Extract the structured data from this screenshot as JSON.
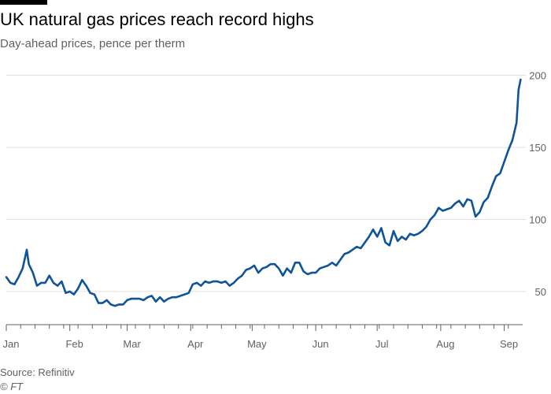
{
  "header": {
    "title": "UK natural gas prices reach record highs",
    "subtitle": "Day-ahead prices, pence per therm"
  },
  "footer": {
    "source": "Source: Refinitiv",
    "credit": "© FT"
  },
  "colors": {
    "line": "#0f5499",
    "grid": "#e6e0db",
    "axis": "#66605c",
    "text": "#66605c"
  },
  "chart_data": {
    "type": "line",
    "title": "UK natural gas prices reach record highs",
    "subtitle": "Day-ahead prices, pence per therm",
    "xlabel": "",
    "ylabel": "pence per therm",
    "ylim": [
      27,
      203
    ],
    "xlim": [
      0,
      252
    ],
    "yticks": [
      50,
      100,
      150,
      200
    ],
    "x_tick_labels": [
      {
        "day": 0,
        "label": "Jan"
      },
      {
        "day": 31,
        "label": "Feb"
      },
      {
        "day": 59,
        "label": "Mar"
      },
      {
        "day": 90,
        "label": "Apr"
      },
      {
        "day": 120,
        "label": "May"
      },
      {
        "day": 151,
        "label": "Jun"
      },
      {
        "day": 181,
        "label": "Jul"
      },
      {
        "day": 212,
        "label": "Aug"
      },
      {
        "day": 243,
        "label": "Sep"
      }
    ],
    "grid": true,
    "legend": "none",
    "series": [
      {
        "name": "Day-ahead price",
        "x": [
          0,
          2,
          4,
          6,
          8,
          10,
          11,
          13,
          15,
          17,
          19,
          21,
          23,
          25,
          27,
          29,
          31,
          33,
          35,
          37,
          39,
          41,
          43,
          45,
          47,
          49,
          51,
          53,
          55,
          57,
          59,
          61,
          63,
          65,
          67,
          69,
          71,
          73,
          75,
          77,
          79,
          81,
          83,
          85,
          87,
          89,
          91,
          93,
          95,
          97,
          99,
          101,
          103,
          105,
          107,
          109,
          111,
          113,
          115,
          117,
          119,
          121,
          123,
          125,
          127,
          129,
          131,
          133,
          135,
          137,
          139,
          141,
          143,
          145,
          147,
          149,
          151,
          153,
          155,
          157,
          159,
          161,
          163,
          165,
          167,
          169,
          171,
          173,
          175,
          177,
          179,
          181,
          183,
          185,
          187,
          189,
          191,
          193,
          195,
          197,
          199,
          201,
          203,
          205,
          207,
          209,
          211,
          213,
          215,
          217,
          219,
          221,
          223,
          225,
          227,
          229,
          231,
          233,
          235,
          237,
          239,
          241,
          243,
          245,
          247,
          249,
          250,
          251
        ],
        "values": [
          60,
          56,
          55,
          60,
          66,
          79,
          69,
          63,
          54,
          56,
          56,
          61,
          56,
          54,
          57,
          49,
          50,
          48,
          52,
          58,
          54,
          49,
          48,
          42,
          42,
          44,
          41,
          40,
          41,
          41,
          44,
          45,
          45,
          45,
          44,
          46,
          47,
          43,
          46,
          43,
          45,
          46,
          46,
          47,
          48,
          49,
          55,
          56,
          54,
          57,
          56,
          57,
          57,
          56,
          57,
          54,
          56,
          59,
          61,
          65,
          66,
          68,
          63,
          66,
          67,
          69,
          69,
          66,
          61,
          66,
          63,
          70,
          70,
          64,
          62,
          63,
          63,
          66,
          67,
          68,
          70,
          68,
          72,
          76,
          77,
          79,
          81,
          80,
          84,
          88,
          93,
          88,
          94,
          84,
          82,
          92,
          85,
          88,
          86,
          90,
          89,
          90,
          92,
          95,
          100,
          103,
          108,
          106,
          107,
          108,
          111,
          113,
          109,
          114,
          113,
          102,
          105,
          112,
          115,
          123,
          130,
          132,
          140,
          148,
          155,
          167,
          190,
          197
        ]
      }
    ]
  }
}
